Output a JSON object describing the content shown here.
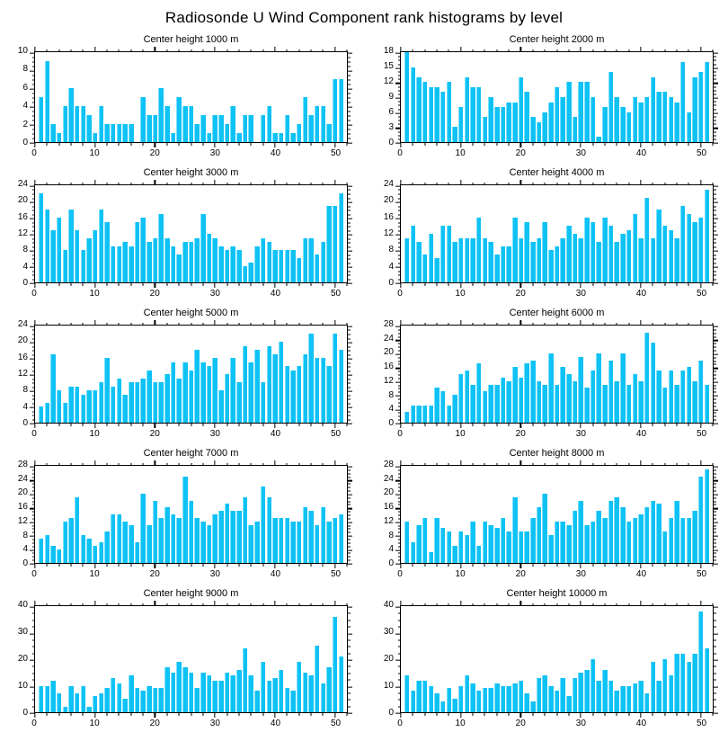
{
  "page": {
    "title": "Radiosonde U Wind Component rank histograms by level"
  },
  "colors": {
    "bar": "#0fc2f5",
    "bar_highlight": "#7adffc",
    "axis": "#000000",
    "text": "#000000",
    "background": "#ffffff"
  },
  "chart_data": [
    {
      "type": "bar",
      "title": "Center height 1000 m",
      "xlabel": "",
      "ylabel": "",
      "xlim": [
        0,
        52
      ],
      "x_major_ticks": [
        0,
        10,
        20,
        30,
        40,
        50
      ],
      "ylim": [
        0,
        10
      ],
      "ytick_step": 2,
      "x_start_rank": 1,
      "values": [
        5,
        9,
        2,
        1,
        4,
        6,
        4,
        4,
        3,
        1,
        4,
        2,
        2,
        2,
        2,
        2,
        0,
        5,
        3,
        3,
        6,
        4,
        1,
        5,
        4,
        4,
        2,
        3,
        1,
        3,
        3,
        2,
        4,
        1,
        3,
        3,
        0,
        3,
        4,
        1,
        1,
        3,
        1,
        2,
        5,
        3,
        4,
        4,
        2,
        7,
        7
      ]
    },
    {
      "type": "bar",
      "title": "Center height 2000 m",
      "xlabel": "",
      "ylabel": "",
      "xlim": [
        0,
        52
      ],
      "x_major_ticks": [
        0,
        10,
        20,
        30,
        40,
        50
      ],
      "ylim": [
        0,
        18
      ],
      "ytick_step": 3,
      "x_start_rank": 1,
      "values": [
        18,
        15,
        13,
        12,
        11,
        11,
        10,
        12,
        3,
        7,
        13,
        11,
        11,
        5,
        9,
        7,
        7,
        8,
        8,
        13,
        10,
        5,
        4,
        6,
        8,
        11,
        9,
        12,
        5,
        12,
        12,
        9,
        1,
        7,
        14,
        9,
        7,
        6,
        9,
        8,
        9,
        13,
        10,
        10,
        9,
        8,
        16,
        6,
        13,
        14,
        16
      ]
    },
    {
      "type": "bar",
      "title": "Center height 3000 m",
      "xlabel": "",
      "ylabel": "",
      "xlim": [
        0,
        52
      ],
      "x_major_ticks": [
        0,
        10,
        20,
        30,
        40,
        50
      ],
      "ylim": [
        0,
        24
      ],
      "ytick_step": 4,
      "x_start_rank": 1,
      "values": [
        22,
        18,
        13,
        16,
        8,
        18,
        13,
        8,
        11,
        13,
        18,
        15,
        9,
        9,
        10,
        9,
        15,
        16,
        10,
        11,
        17,
        11,
        9,
        7,
        10,
        10,
        11,
        17,
        12,
        11,
        9,
        8,
        9,
        8,
        4,
        5,
        9,
        11,
        10,
        8,
        8,
        8,
        8,
        6,
        11,
        11,
        7,
        10,
        19,
        19,
        22
      ]
    },
    {
      "type": "bar",
      "title": "Center height 4000 m",
      "xlabel": "",
      "ylabel": "",
      "xlim": [
        0,
        52
      ],
      "x_major_ticks": [
        0,
        10,
        20,
        30,
        40,
        50
      ],
      "ylim": [
        0,
        24
      ],
      "ytick_step": 4,
      "x_start_rank": 1,
      "values": [
        11,
        14,
        10,
        7,
        12,
        6,
        14,
        14,
        10,
        11,
        11,
        11,
        16,
        11,
        10,
        7,
        9,
        9,
        16,
        11,
        15,
        10,
        11,
        15,
        8,
        9,
        11,
        14,
        12,
        11,
        16,
        15,
        10,
        16,
        14,
        10,
        12,
        13,
        17,
        11,
        21,
        11,
        18,
        14,
        13,
        11,
        19,
        17,
        15,
        16,
        23
      ]
    },
    {
      "type": "bar",
      "title": "Center height 5000 m",
      "xlabel": "",
      "ylabel": "",
      "xlim": [
        0,
        52
      ],
      "x_major_ticks": [
        0,
        10,
        20,
        30,
        40,
        50
      ],
      "ylim": [
        0,
        24
      ],
      "ytick_step": 4,
      "x_start_rank": 1,
      "values": [
        4,
        5,
        17,
        8,
        5,
        9,
        9,
        7,
        8,
        8,
        10,
        16,
        9,
        11,
        7,
        10,
        10,
        11,
        13,
        10,
        10,
        12,
        15,
        11,
        15,
        13,
        18,
        15,
        14,
        16,
        8,
        12,
        16,
        10,
        19,
        15,
        18,
        10,
        19,
        17,
        20,
        14,
        13,
        14,
        17,
        22,
        16,
        16,
        14,
        22,
        18
      ]
    },
    {
      "type": "bar",
      "title": "Center height 6000 m",
      "xlabel": "",
      "ylabel": "",
      "xlim": [
        0,
        52
      ],
      "x_major_ticks": [
        0,
        10,
        20,
        30,
        40,
        50
      ],
      "ylim": [
        0,
        28
      ],
      "ytick_step": 4,
      "x_start_rank": 1,
      "values": [
        3,
        5,
        5,
        5,
        5,
        10,
        9,
        5,
        8,
        14,
        15,
        11,
        17,
        9,
        11,
        11,
        13,
        12,
        16,
        13,
        17,
        18,
        12,
        11,
        20,
        11,
        16,
        14,
        12,
        19,
        10,
        15,
        20,
        11,
        18,
        12,
        20,
        11,
        14,
        12,
        26,
        23,
        15,
        10,
        15,
        11,
        15,
        16,
        12,
        18,
        11
      ]
    },
    {
      "type": "bar",
      "title": "Center height 7000 m",
      "xlabel": "",
      "ylabel": "",
      "xlim": [
        0,
        52
      ],
      "x_major_ticks": [
        0,
        10,
        20,
        30,
        40,
        50
      ],
      "ylim": [
        0,
        28
      ],
      "ytick_step": 4,
      "x_start_rank": 1,
      "values": [
        7,
        8,
        5,
        4,
        12,
        13,
        19,
        8,
        7,
        5,
        6,
        9,
        14,
        14,
        12,
        11,
        6,
        20,
        11,
        18,
        13,
        16,
        14,
        13,
        25,
        18,
        13,
        12,
        11,
        14,
        15,
        17,
        15,
        15,
        19,
        11,
        12,
        22,
        19,
        13,
        13,
        13,
        12,
        12,
        16,
        15,
        11,
        16,
        12,
        13,
        14
      ]
    },
    {
      "type": "bar",
      "title": "Center height 8000 m",
      "xlabel": "",
      "ylabel": "",
      "xlim": [
        0,
        52
      ],
      "x_major_ticks": [
        0,
        10,
        20,
        30,
        40,
        50
      ],
      "ylim": [
        0,
        28
      ],
      "ytick_step": 4,
      "x_start_rank": 1,
      "values": [
        12,
        6,
        11,
        13,
        3,
        13,
        10,
        9,
        5,
        9,
        8,
        12,
        5,
        12,
        11,
        10,
        13,
        9,
        19,
        9,
        9,
        13,
        16,
        20,
        8,
        12,
        12,
        11,
        15,
        18,
        11,
        12,
        15,
        13,
        18,
        19,
        16,
        12,
        13,
        14,
        16,
        18,
        17,
        9,
        13,
        18,
        13,
        13,
        15,
        25,
        27
      ]
    },
    {
      "type": "bar",
      "title": "Center height 9000 m",
      "xlabel": "",
      "ylabel": "",
      "xlim": [
        0,
        52
      ],
      "x_major_ticks": [
        0,
        10,
        20,
        30,
        40,
        50
      ],
      "ylim": [
        0,
        40
      ],
      "ytick_step": 10,
      "x_start_rank": 1,
      "values": [
        10,
        10,
        12,
        7,
        2,
        10,
        7,
        10,
        2,
        6,
        7,
        9,
        13,
        11,
        5,
        14,
        9,
        8,
        10,
        9,
        9,
        17,
        15,
        19,
        17,
        15,
        9,
        15,
        14,
        12,
        12,
        15,
        14,
        16,
        24,
        14,
        8,
        19,
        12,
        13,
        16,
        9,
        8,
        19,
        15,
        14,
        25,
        11,
        17,
        36,
        21
      ]
    },
    {
      "type": "bar",
      "title": "Center height 10000 m",
      "xlabel": "",
      "ylabel": "",
      "xlim": [
        0,
        52
      ],
      "x_major_ticks": [
        0,
        10,
        20,
        30,
        40,
        50
      ],
      "ylim": [
        0,
        40
      ],
      "ytick_step": 10,
      "x_start_rank": 1,
      "values": [
        14,
        8,
        12,
        12,
        10,
        7,
        4,
        9,
        5,
        10,
        14,
        11,
        8,
        9,
        9,
        11,
        10,
        10,
        11,
        12,
        7,
        4,
        13,
        14,
        10,
        8,
        13,
        6,
        13,
        15,
        16,
        20,
        12,
        16,
        12,
        8,
        10,
        10,
        11,
        12,
        7,
        19,
        12,
        20,
        14,
        22,
        22,
        19,
        22,
        38,
        24
      ]
    }
  ]
}
